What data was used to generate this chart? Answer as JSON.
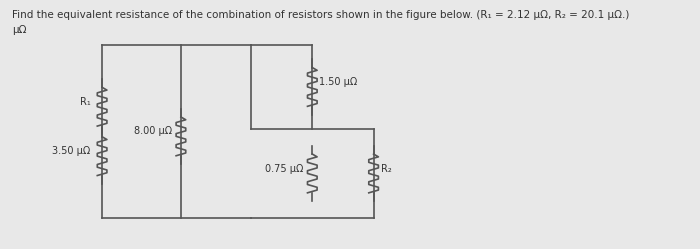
{
  "title_line1": "Find the equivalent resistance of the combination of resistors shown in the figure below. (R₁ = 2.12 μΩ, R₂ = 20.1 μΩ.)",
  "title_line2": "μΩ",
  "background_color": "#e8e8e8",
  "wire_color": "#555555",
  "resistor_color": "#555555",
  "text_color": "#333333",
  "resistors": {
    "R1_label": "R₁",
    "R1_val": "3.50 μΩ",
    "R2_label": "8.00 μΩ",
    "R3_label": "1.50 μΩ",
    "R4_label": "0.75 μΩ",
    "R5_label": "R₂"
  }
}
